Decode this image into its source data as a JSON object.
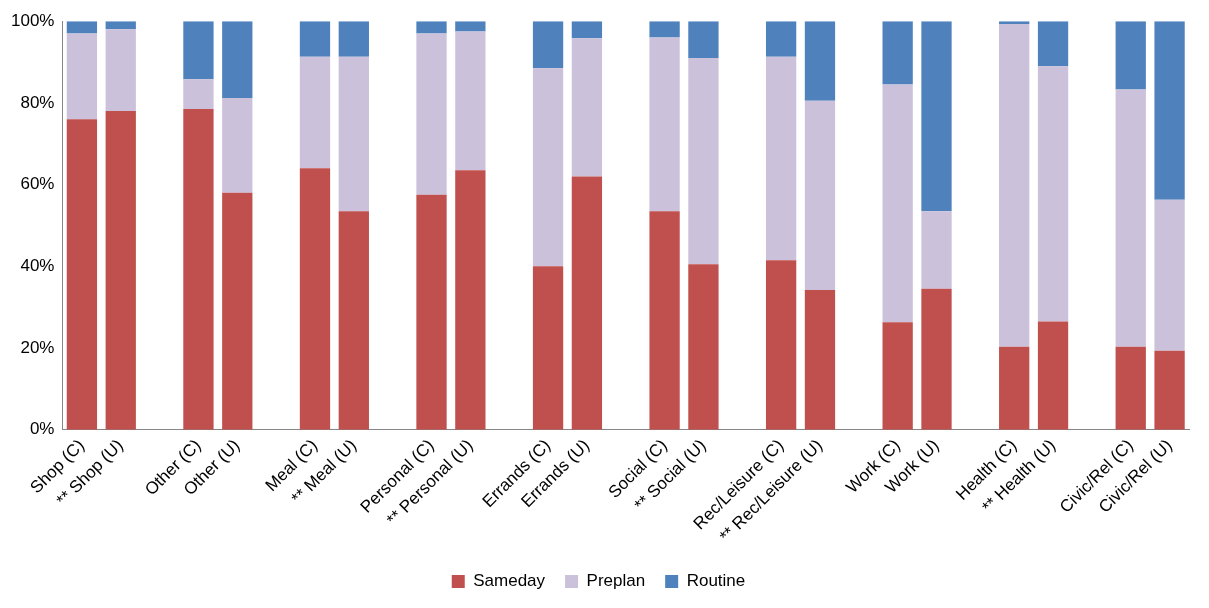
{
  "chart_data": {
    "type": "bar",
    "stacked": true,
    "legend": "bottom",
    "grid": false,
    "categories": [
      "Shop (C)",
      "** Shop (U)",
      null,
      "Other (C)",
      "Other (U)",
      null,
      "Meal (C)",
      "** Meal (U)",
      null,
      "Personal (C)",
      "** Personal (U)",
      null,
      "Errands (C)",
      "Errands (U)",
      null,
      "Social (C)",
      "** Social (U)",
      null,
      "Rec/Leisure (C)",
      "** Rec/Leisure (U)",
      null,
      "Work (C)",
      "Work (U)",
      null,
      "Health (C)",
      "** Health (U)",
      null,
      "Civic/Rel (C)",
      "Civic/Rel (U)"
    ],
    "ylim": [
      0,
      100
    ],
    "yticks": [
      {
        "value": 0,
        "label": "0%"
      },
      {
        "value": 20,
        "label": "20%"
      },
      {
        "value": 40,
        "label": "40%"
      },
      {
        "value": 60,
        "label": "60%"
      },
      {
        "value": 80,
        "label": "80%"
      },
      {
        "value": 100,
        "label": "100%"
      }
    ],
    "series": [
      {
        "name": "Sameday",
        "color": "#c0504d",
        "values": [
          76,
          78,
          null,
          78.5,
          58,
          null,
          64,
          53.5,
          null,
          57.5,
          63.5,
          null,
          40,
          62,
          null,
          53.5,
          40.5,
          null,
          41.5,
          34.2,
          null,
          26.3,
          34.5,
          null,
          20.3,
          26.5,
          null,
          20.3,
          19.3
        ]
      },
      {
        "name": "Preplan",
        "color": "#ccc1da",
        "values": [
          21,
          20,
          null,
          7.3,
          23.2,
          null,
          27.3,
          37.8,
          null,
          39.5,
          34,
          null,
          48.5,
          33.8,
          null,
          42.5,
          50.5,
          null,
          49.8,
          46.3,
          null,
          58.2,
          19,
          null,
          79,
          62.5,
          null,
          63,
          37
        ]
      },
      {
        "name": "Routine",
        "color": "#4f81bd",
        "values": [
          3,
          2,
          null,
          14.2,
          18.8,
          null,
          8.7,
          8.7,
          null,
          3,
          2.5,
          null,
          11.5,
          4.2,
          null,
          4,
          9,
          null,
          8.7,
          19.5,
          null,
          15.5,
          46.5,
          null,
          0.7,
          11,
          null,
          16.7,
          43.7
        ]
      }
    ]
  }
}
